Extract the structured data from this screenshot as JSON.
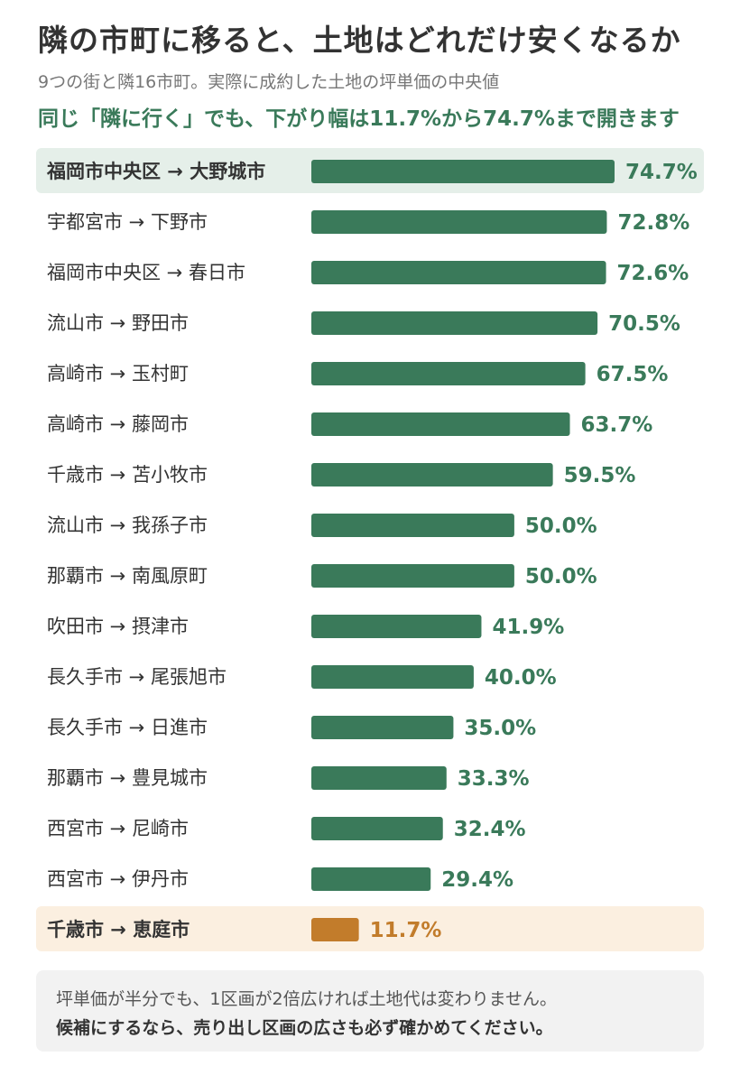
{
  "title": "隣の市町に移ると、土地はどれだけ安くなるか",
  "subtitle": "9つの街と隣16市町。実際に成約した土地の坪単価の中央値",
  "lead": "同じ「隣に行く」でも、下がり幅は11.7%から74.7%まで開きます",
  "colors": {
    "bar": "#3a7a5a",
    "bar_low": "#c27c2b",
    "highlight_top_bg": "#e5efe9",
    "highlight_low_bg": "#fbefe0"
  },
  "chart_data": {
    "type": "bar",
    "orientation": "horizontal",
    "unit": "%",
    "categories": [
      "福岡市中央区 → 大野城市",
      "宇都宮市 → 下野市",
      "福岡市中央区 → 春日市",
      "流山市 → 野田市",
      "高崎市 → 玉村町",
      "高崎市 → 藤岡市",
      "千歳市 → 苫小牧市",
      "流山市 → 我孫子市",
      "那覇市 → 南風原町",
      "吹田市 → 摂津市",
      "長久手市 → 尾張旭市",
      "長久手市 → 日進市",
      "那覇市 → 豊見城市",
      "西宮市 → 尼崎市",
      "西宮市 → 伊丹市",
      "千歳市 → 恵庭市"
    ],
    "values": [
      74.7,
      72.8,
      72.6,
      70.5,
      67.5,
      63.7,
      59.5,
      50.0,
      50.0,
      41.9,
      40.0,
      35.0,
      33.3,
      32.4,
      29.4,
      11.7
    ],
    "value_labels": [
      "74.7%",
      "72.8%",
      "72.6%",
      "70.5%",
      "67.5%",
      "63.7%",
      "59.5%",
      "50.0%",
      "50.0%",
      "41.9%",
      "40.0%",
      "35.0%",
      "33.3%",
      "32.4%",
      "29.4%",
      "11.7%"
    ],
    "highlight_max_index": 0,
    "highlight_min_index": 15,
    "xlim": [
      0,
      74.7
    ],
    "grid": false,
    "legend": "none"
  },
  "note": {
    "line1": "坪単価が半分でも、1区画が2倍広ければ土地代は変わりません。",
    "line2": "候補にするなら、売り出し区画の広さも必ず確かめてください。"
  }
}
